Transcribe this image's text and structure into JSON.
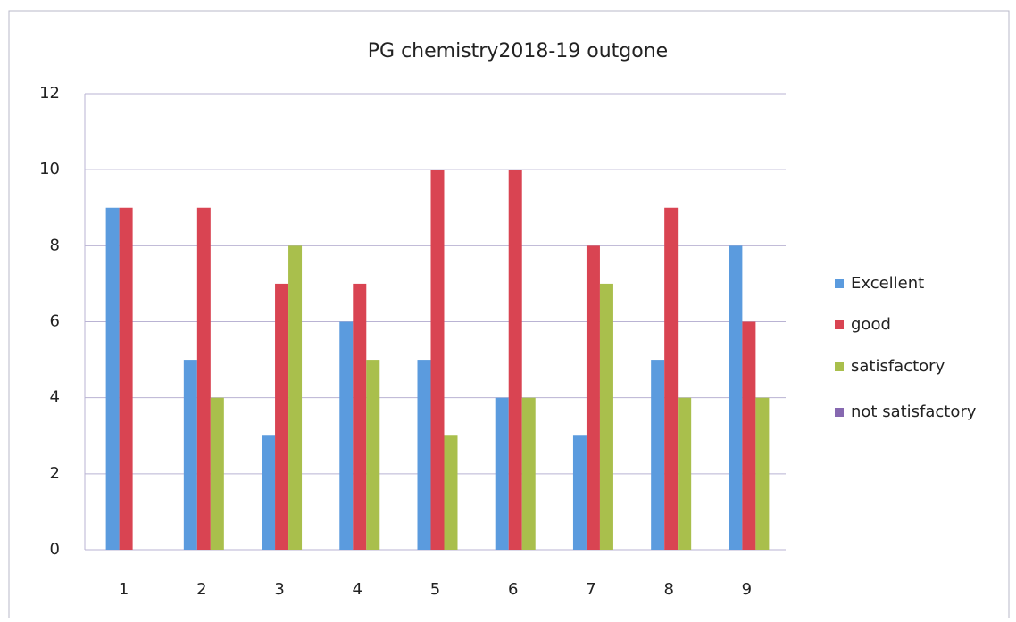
{
  "chart_data": {
    "type": "bar",
    "title": "PG chemistry2018-19 outgone",
    "categories": [
      "1",
      "2",
      "3",
      "4",
      "5",
      "6",
      "7",
      "8",
      "9"
    ],
    "series": [
      {
        "name": "Excellent",
        "color": "#5b9bde",
        "values": [
          9,
          5,
          3,
          6,
          5,
          4,
          3,
          5,
          8
        ]
      },
      {
        "name": "good",
        "color": "#d94452",
        "values": [
          9,
          9,
          7,
          7,
          10,
          10,
          8,
          9,
          6
        ]
      },
      {
        "name": "satisfactory",
        "color": "#a9bf4c",
        "values": [
          0,
          4,
          8,
          5,
          3,
          4,
          7,
          4,
          4
        ]
      },
      {
        "name": "not satisfactory",
        "color": "#8668b0",
        "values": [
          0,
          0,
          0,
          0,
          0,
          0,
          0,
          0,
          0
        ]
      }
    ],
    "ylim": [
      0,
      12
    ],
    "yticks": [
      0,
      2,
      4,
      6,
      8,
      10,
      12
    ],
    "grid": true,
    "legend": "right"
  }
}
